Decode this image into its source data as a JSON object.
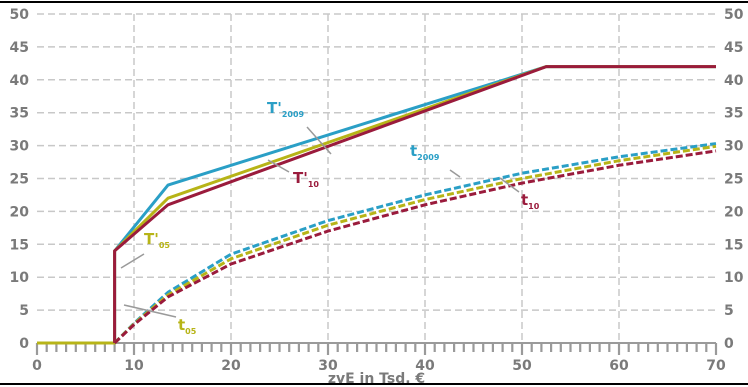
{
  "chart_data": {
    "type": "line",
    "title": "",
    "xlabel": "zvE in Tsd. €",
    "ylabel": "",
    "xlim": [
      0,
      70
    ],
    "ylim": [
      0,
      50
    ],
    "x_ticks": [
      0,
      10,
      20,
      30,
      40,
      50,
      60,
      70
    ],
    "y_ticks": [
      0,
      5,
      10,
      15,
      20,
      25,
      30,
      35,
      40,
      45,
      50
    ],
    "y_axis_right": true,
    "grid": "dashed",
    "series": [
      {
        "name": "T'2009",
        "label_main": "T'",
        "label_sub": "2009",
        "style": "solid",
        "color": "#2a9fc6",
        "x": [
          8.0,
          8.0,
          13.5,
          52.5,
          70
        ],
        "y": [
          0,
          14.0,
          24.0,
          42.0,
          42.0
        ]
      },
      {
        "name": "T'05",
        "label_main": "T'",
        "label_sub": "05",
        "style": "solid",
        "color": "#b7b417",
        "x": [
          0,
          8.0,
          8.0,
          13.5,
          52.5,
          70
        ],
        "y": [
          0,
          0,
          14.0,
          22.0,
          42.0,
          42.0
        ]
      },
      {
        "name": "T'10",
        "label_main": "T'",
        "label_sub": "10",
        "style": "solid",
        "color": "#9a1b3c",
        "x": [
          8.0,
          8.0,
          13.5,
          52.5,
          70
        ],
        "y": [
          0,
          14.0,
          21.0,
          42.0,
          42.0
        ]
      },
      {
        "name": "t2009",
        "label_main": "t",
        "label_sub": "2009",
        "style": "dashed",
        "color": "#2a9fc6",
        "x": [
          8.0,
          10,
          13.5,
          20,
          30,
          40,
          50,
          60,
          70
        ],
        "y": [
          0,
          3.0,
          7.7,
          13.5,
          18.6,
          22.5,
          25.8,
          28.3,
          30.3
        ]
      },
      {
        "name": "t05",
        "label_main": "t",
        "label_sub": "05",
        "style": "dashed",
        "color": "#b7b417",
        "x": [
          8.0,
          10,
          13.5,
          20,
          30,
          40,
          50,
          60,
          70
        ],
        "y": [
          0,
          2.9,
          7.3,
          12.8,
          17.9,
          21.8,
          25.0,
          27.7,
          29.9
        ]
      },
      {
        "name": "t10",
        "label_main": "t",
        "label_sub": "10",
        "style": "dashed",
        "color": "#9a1b3c",
        "x": [
          8.0,
          10,
          13.5,
          20,
          30,
          40,
          50,
          60,
          70
        ],
        "y": [
          0,
          2.8,
          7.0,
          12.0,
          17.0,
          21.0,
          24.3,
          27.0,
          29.2
        ]
      }
    ]
  }
}
